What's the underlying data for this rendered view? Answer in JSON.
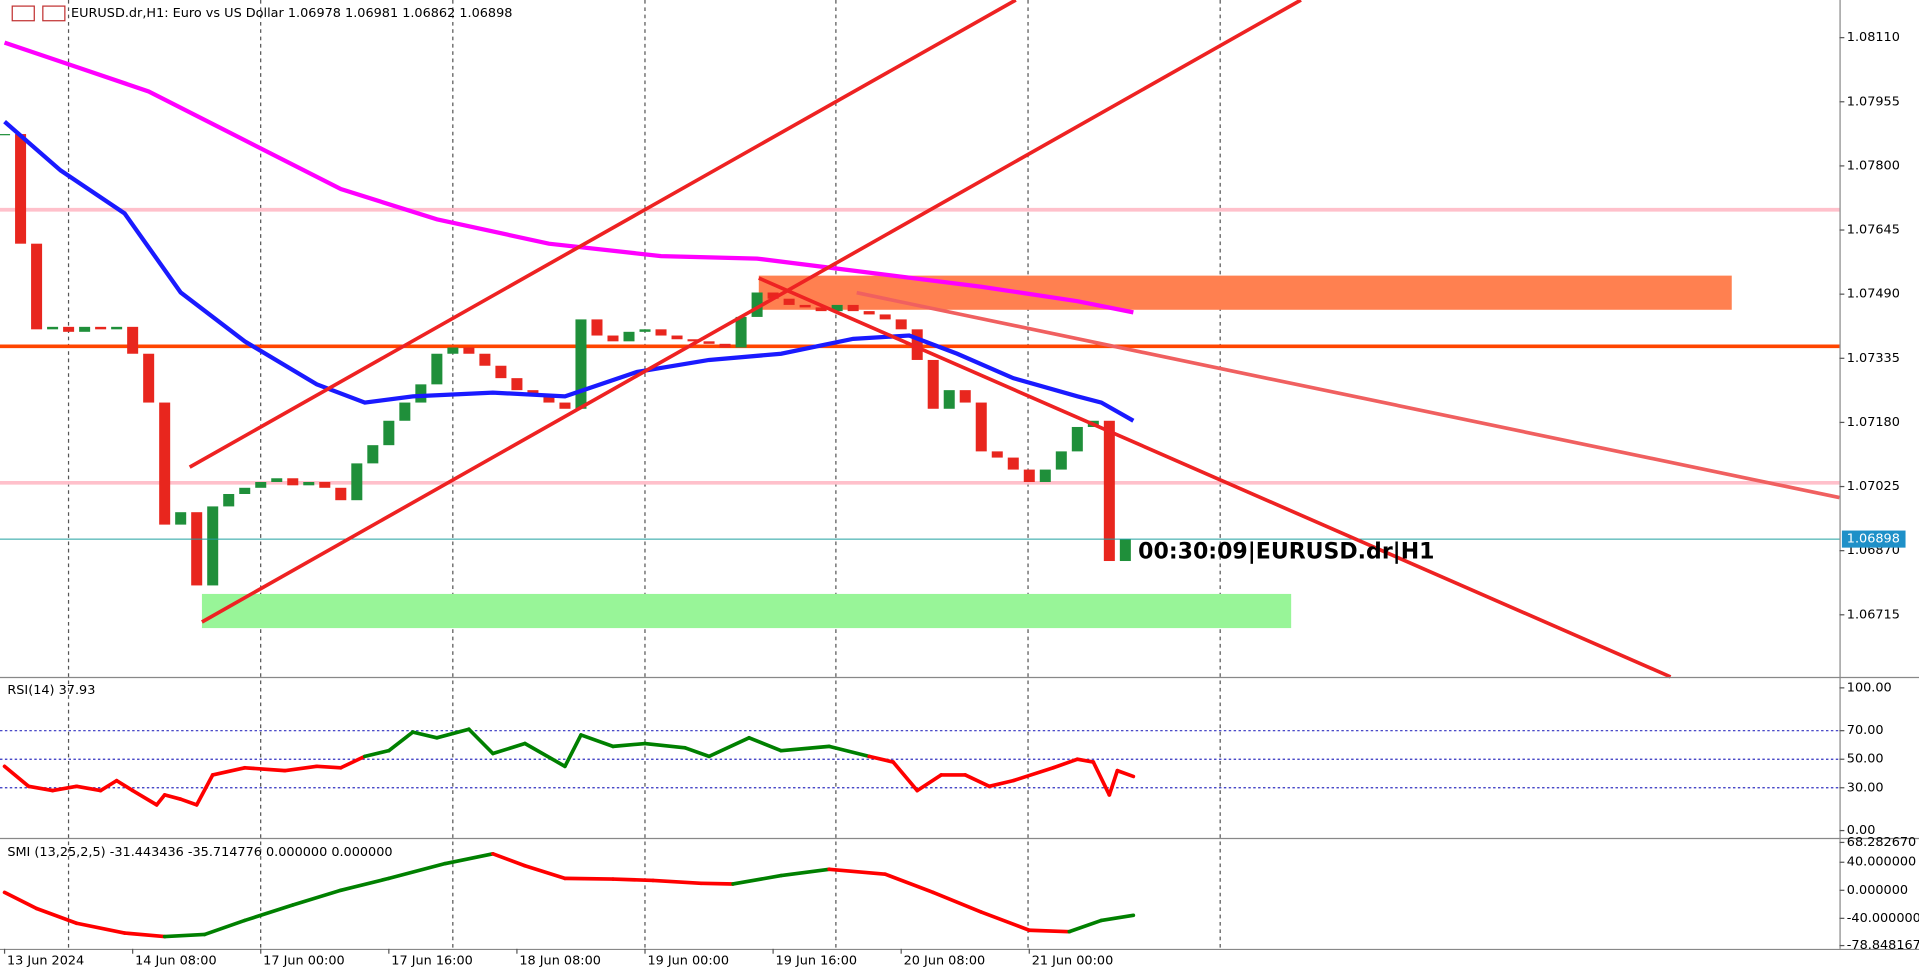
{
  "chart_data": [
    {
      "type": "candlestick",
      "title": "EURUSD.dr,H1:  Euro vs US Dollar  1.06978 1.06981 1.06862 1.06898",
      "annotation": "00:30:09|EURUSD.dr|H1",
      "x": [
        0,
        2,
        4,
        6,
        8,
        10,
        12,
        14,
        16,
        18,
        20,
        22,
        24,
        26,
        28,
        30,
        32,
        34,
        36,
        38,
        40,
        42,
        44,
        46,
        48,
        50,
        52,
        54,
        56,
        58,
        60,
        62,
        64,
        66,
        68,
        70,
        72,
        74,
        76,
        78,
        80,
        82,
        84,
        86,
        88,
        90,
        92,
        94,
        96,
        98,
        100,
        102,
        104,
        106,
        108,
        110,
        112,
        114,
        116,
        118,
        120,
        122,
        124,
        126,
        128,
        130,
        132,
        134,
        136,
        138,
        140
      ],
      "values": [
        1.07877,
        1.07612,
        1.07405,
        1.07411,
        1.07399,
        1.07411,
        1.07405,
        1.07411,
        1.07346,
        1.07228,
        1.06933,
        1.06963,
        1.06786,
        1.06977,
        1.07007,
        1.07022,
        1.07036,
        1.07045,
        1.07028,
        1.07036,
        1.07022,
        1.06992,
        1.07081,
        1.07125,
        1.07184,
        1.07228,
        1.07272,
        1.07346,
        1.07361,
        1.07346,
        1.07317,
        1.07287,
        1.07258,
        1.07243,
        1.07228,
        1.07213,
        1.07429,
        1.0739,
        1.07376,
        1.07399,
        1.07405,
        1.0739,
        1.07381,
        1.07376,
        1.0737,
        1.07361,
        1.07435,
        1.07494,
        1.07479,
        1.07464,
        1.07458,
        1.07449,
        1.07464,
        1.07449,
        1.07441,
        1.07429,
        1.07405,
        1.07331,
        1.07213,
        1.07258,
        1.07228,
        1.0711,
        1.07095,
        1.07066,
        1.07036,
        1.07066,
        1.0711,
        1.07169,
        1.07184,
        1.06845,
        1.06898
      ],
      "up_color": "#1f8f3a",
      "down_color": "#e8261e",
      "series": [
        {
          "color": "#ff00ff",
          "x": [
            0,
            9,
            18,
            30,
            42,
            54,
            68,
            82,
            94,
            106,
            122,
            134,
            141
          ],
          "values": [
            1.08098,
            1.08039,
            1.0798,
            1.07862,
            1.07744,
            1.07671,
            1.07612,
            1.07582,
            1.07576,
            1.07547,
            1.07508,
            1.07473,
            1.07446
          ]
        },
        {
          "color": "#1a1aff",
          "x": [
            0,
            7,
            15,
            22,
            30,
            39,
            45,
            51,
            61,
            70,
            79,
            88,
            97,
            106,
            113,
            119,
            126,
            134,
            137,
            141
          ],
          "values": [
            1.07907,
            1.07789,
            1.07685,
            1.07494,
            1.07376,
            1.07272,
            1.07228,
            1.07243,
            1.07252,
            1.07243,
            1.07302,
            1.07331,
            1.07346,
            1.07382,
            1.0739,
            1.07346,
            1.07287,
            1.07243,
            1.07228,
            1.07184
          ]
        }
      ],
      "levels": [
        {
          "value": 1.07364,
          "color": "#ff4500"
        },
        {
          "value": 1.07694,
          "color": "#ffc0cb"
        },
        {
          "value": 1.07034,
          "color": "#ffc0cb"
        }
      ],
      "last_price": 1.06898,
      "xlim": [
        -0.57,
        229.2
      ],
      "ylim": [
        1.06565,
        1.08201
      ],
      "yticks": [
        {
          "value": 1.0811,
          "label": "1.08110"
        },
        1.07955,
        {
          "value": 1.078,
          "label": "1.07800"
        },
        1.07645,
        {
          "value": 1.0749,
          "label": "1.07490"
        },
        1.07335,
        {
          "value": 1.0718,
          "label": "1.07180"
        },
        1.07025,
        {
          "value": 1.0687,
          "label": "1.06870"
        },
        1.06715
      ]
    },
    {
      "type": "line",
      "title": "RSI(14) 37.93",
      "x": [
        0,
        3,
        6,
        9,
        12,
        14,
        16,
        19,
        20,
        22,
        24,
        26,
        30,
        35,
        39,
        42,
        45,
        48,
        51,
        54,
        58,
        61,
        65,
        70,
        72,
        76,
        80,
        85,
        88,
        93,
        97,
        103,
        108,
        111,
        114,
        117,
        120,
        123,
        126,
        131,
        134,
        136,
        138,
        139,
        141
      ],
      "values": [
        45,
        31,
        28,
        31,
        28,
        35,
        28,
        18,
        25,
        22,
        18,
        39,
        44,
        42,
        45,
        44,
        52,
        56,
        69,
        65,
        71,
        54,
        61,
        45,
        67,
        59,
        61,
        58,
        52,
        65,
        56,
        59,
        52,
        48,
        28,
        39,
        39,
        31,
        35,
        44,
        50,
        48,
        25,
        42,
        37.93
      ],
      "up_color": "#008000",
      "down_color": "#ff0000",
      "color_by": "level",
      "color_level": 50,
      "grid": true,
      "xlim": [
        -0.57,
        229.2
      ],
      "ylim": [
        -5.1,
        106
      ],
      "yticks": [
        {
          "value": 100,
          "label": "100.00"
        },
        {
          "value": 70,
          "label": "70.00"
        },
        {
          "value": 50,
          "label": "50.00"
        },
        {
          "value": 30,
          "label": "30.00"
        },
        {
          "value": 0,
          "label": "0.00"
        }
      ]
    },
    {
      "type": "line",
      "title": "SMI (13,25,2,5) -31.443436 -35.714776 0.000000 0.000000",
      "x": [
        0,
        4,
        9,
        15,
        20,
        25,
        30,
        36,
        42,
        48,
        55,
        61,
        65,
        70,
        76,
        81,
        87,
        91,
        97,
        103,
        110,
        116,
        122,
        128,
        133,
        137,
        141
      ],
      "values": [
        -3,
        -26,
        -47,
        -61,
        -66,
        -63,
        -43,
        -21,
        0,
        17,
        38,
        52,
        35,
        17,
        16,
        14,
        10,
        9,
        21,
        30,
        23,
        -3,
        -31,
        -57,
        -59,
        -43,
        -35.714776
      ],
      "up_color": "#008000",
      "down_color": "#ff0000",
      "color_by": "slope",
      "grid": false,
      "xlim": [
        -0.57,
        229.2
      ],
      "ylim": [
        -83.5,
        69.6
      ],
      "yticks": [
        {
          "value": 68.28267,
          "label": "68.282670"
        },
        {
          "value": 40,
          "label": "40.000000"
        },
        {
          "value": 0,
          "label": "0.000000"
        },
        {
          "value": -40,
          "label": "-40.000000"
        },
        {
          "value": -78.848167,
          "label": "-78.848167"
        }
      ],
      "xticks": [
        {
          "value": 0,
          "label": "13 Jun 2024"
        },
        {
          "value": 16,
          "label": "14 Jun 08:00"
        },
        {
          "value": 32,
          "label": "17 Jun 00:00"
        },
        {
          "value": 48,
          "label": "17 Jun 16:00"
        },
        {
          "value": 64,
          "label": "18 Jun 08:00"
        },
        {
          "value": 80,
          "label": "19 Jun 00:00"
        },
        {
          "value": 96,
          "label": "19 Jun 16:00"
        },
        {
          "value": 112,
          "label": "20 Jun 08:00"
        },
        {
          "value": 128,
          "label": "21 Jun 00:00"
        }
      ]
    }
  ]
}
